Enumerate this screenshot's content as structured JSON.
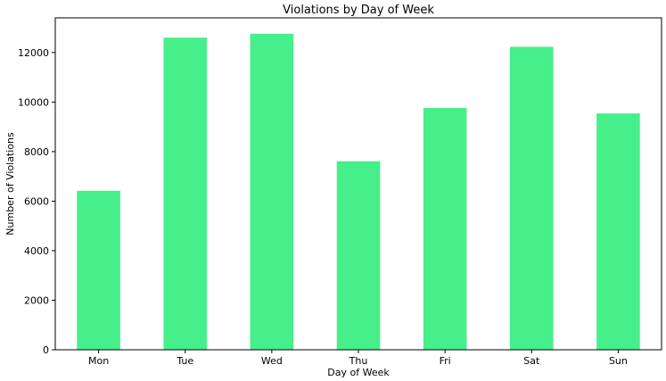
{
  "chart_data": {
    "type": "bar",
    "title": "Violations by Day of Week",
    "xlabel": "Day of Week",
    "ylabel": "Number of Violations",
    "categories": [
      "Mon",
      "Tue",
      "Wed",
      "Thu",
      "Fri",
      "Sat",
      "Sun"
    ],
    "values": [
      6420,
      12600,
      12760,
      7610,
      9760,
      12230,
      9540
    ],
    "ylim": [
      0,
      13400
    ],
    "yticks": [
      0,
      2000,
      4000,
      6000,
      8000,
      10000,
      12000
    ],
    "grid": false,
    "legend": "none",
    "bar_color": "#46ef8a"
  }
}
